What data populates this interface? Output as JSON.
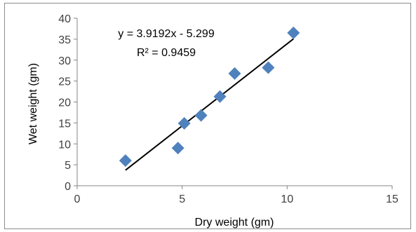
{
  "chart_data": {
    "type": "scatter",
    "title": "",
    "xlabel": "Dry weight (gm)",
    "ylabel": "Wet weight (gm)",
    "xlim": [
      0,
      15
    ],
    "ylim": [
      0,
      40
    ],
    "x_ticks": [
      "0",
      "5",
      "10",
      "15"
    ],
    "y_ticks": [
      "0",
      "5",
      "10",
      "15",
      "20",
      "25",
      "30",
      "35",
      "40"
    ],
    "grid": false,
    "legend": "none",
    "series": [
      {
        "marker": "diamond",
        "color": "#4F81BD",
        "points": [
          {
            "x": 2.3,
            "y": 6.0
          },
          {
            "x": 4.8,
            "y": 9.0
          },
          {
            "x": 5.1,
            "y": 14.9
          },
          {
            "x": 5.9,
            "y": 16.8
          },
          {
            "x": 6.8,
            "y": 21.3
          },
          {
            "x": 7.5,
            "y": 26.8
          },
          {
            "x": 9.1,
            "y": 28.2
          },
          {
            "x": 10.3,
            "y": 36.5
          }
        ]
      }
    ],
    "trendline": {
      "type": "linear",
      "slope": 3.9192,
      "intercept": -5.299,
      "x_range": [
        2.3,
        10.3
      ],
      "color": "#000000",
      "equation_label": "y = 3.9192x - 5.299",
      "r2_label": "R² = 0.9459"
    }
  }
}
